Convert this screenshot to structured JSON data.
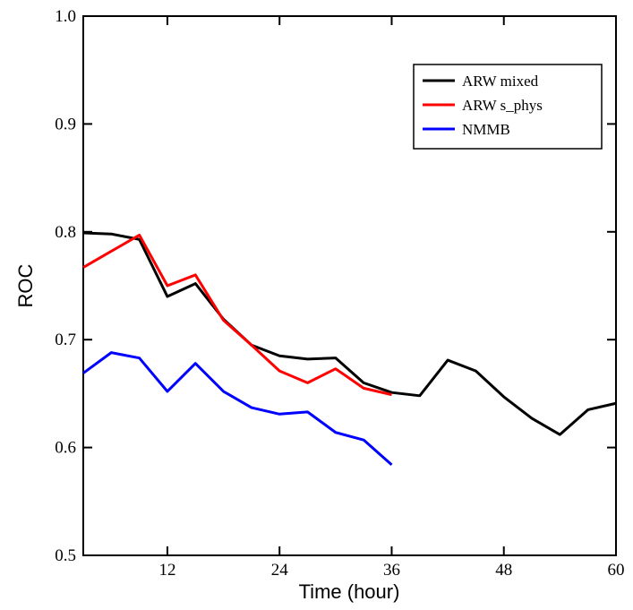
{
  "chart_data": {
    "type": "line",
    "x_label": "Time (hour)",
    "y_label": "ROC",
    "xlim": [
      3,
      60
    ],
    "xticks": [
      12,
      24,
      36,
      48,
      60
    ],
    "ylim": [
      0.5,
      1.0
    ],
    "yticks": [
      0.5,
      0.6,
      0.7,
      0.8,
      0.9,
      {
        "value": 1.0,
        "label": "1.0"
      }
    ],
    "legend": "upper right",
    "series": [
      {
        "name": "ARW mixed",
        "color": "#000000",
        "x": [
          3,
          6,
          9,
          12,
          15,
          18,
          21,
          24,
          27,
          30,
          33,
          36,
          39,
          42,
          45,
          48,
          51,
          54,
          57,
          60
        ],
        "values": [
          0.799,
          0.798,
          0.793,
          0.74,
          0.752,
          0.719,
          0.695,
          0.685,
          0.682,
          0.683,
          0.66,
          0.651,
          0.648,
          0.681,
          0.671,
          0.647,
          0.627,
          0.612,
          0.635,
          0.641
        ]
      },
      {
        "name": "ARW s_phys",
        "color": "#ff0000",
        "x": [
          3,
          6,
          9,
          12,
          15,
          18,
          21,
          24,
          27,
          30,
          33,
          36
        ],
        "values": [
          0.767,
          0.782,
          0.797,
          0.75,
          0.76,
          0.718,
          0.695,
          0.671,
          0.66,
          0.673,
          0.655,
          0.649
        ]
      },
      {
        "name": "NMMB",
        "color": "#0000ff",
        "x": [
          3,
          6,
          9,
          12,
          15,
          18,
          21,
          24,
          27,
          30,
          33,
          36
        ],
        "values": [
          0.669,
          0.688,
          0.683,
          0.652,
          0.678,
          0.652,
          0.637,
          0.631,
          0.633,
          0.614,
          0.607,
          0.584
        ]
      }
    ]
  }
}
